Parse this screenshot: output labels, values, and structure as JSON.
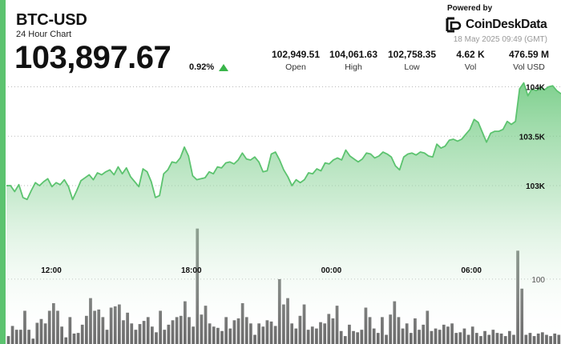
{
  "header": {
    "pair": "BTC-USD",
    "subtitle": "24 Hour Chart",
    "price": "103,897.67",
    "change": "0.92%",
    "change_direction_icon": "up-triangle-icon"
  },
  "stats": [
    {
      "value": "102,949.51",
      "label": "Open"
    },
    {
      "value": "104,061.63",
      "label": "High"
    },
    {
      "value": "102,758.35",
      "label": "Low"
    },
    {
      "value": "4.62 K",
      "label": "Vol"
    },
    {
      "value": "476.59 M",
      "label": "Vol USD"
    }
  ],
  "branding": {
    "powered_by": "Powered by",
    "name": "CoinDeskData",
    "logo_icon": "coindesk-logo-icon",
    "timestamp": "18 May 2025 09:49 (GMT)"
  },
  "colors": {
    "accent": "#5cc36f",
    "line": "#5cc36f",
    "fill_top": "#5cc36f",
    "volume_bars": "#6b6b6b",
    "up": "#39b54a"
  },
  "chart_data": {
    "type": "area",
    "x_tick_labels": [
      "12:00",
      "18:00",
      "00:00",
      "06:00"
    ],
    "y_tick_labels": [
      "104K",
      "103.5K",
      "103K"
    ],
    "y_ticks": [
      104000,
      103500,
      103000
    ],
    "ylim": [
      102450,
      104150
    ],
    "volume_tick_label": "100",
    "volume_tick_value": 100,
    "volume_max": 215,
    "price": [
      103000,
      103000,
      102940,
      103010,
      102880,
      102860,
      102950,
      103030,
      103000,
      103040,
      103070,
      102990,
      103030,
      103010,
      103060,
      102990,
      102860,
      102950,
      103050,
      103080,
      103110,
      103060,
      103130,
      103110,
      103140,
      103160,
      103110,
      103190,
      103120,
      103180,
      103090,
      103040,
      102990,
      103170,
      103140,
      103040,
      102880,
      102900,
      103120,
      103160,
      103240,
      103230,
      103280,
      103390,
      103300,
      103100,
      103060,
      103070,
      103080,
      103140,
      103120,
      103190,
      103180,
      103230,
      103240,
      103220,
      103260,
      103330,
      103270,
      103260,
      103290,
      103240,
      103140,
      103150,
      103320,
      103340,
      103260,
      103160,
      103090,
      103000,
      103060,
      103030,
      103060,
      103130,
      103120,
      103170,
      103150,
      103230,
      103220,
      103260,
      103280,
      103260,
      103360,
      103300,
      103270,
      103240,
      103270,
      103330,
      103320,
      103280,
      103300,
      103340,
      103320,
      103290,
      103200,
      103160,
      103290,
      103320,
      103330,
      103310,
      103340,
      103330,
      103300,
      103290,
      103420,
      103380,
      103400,
      103460,
      103470,
      103450,
      103470,
      103520,
      103570,
      103670,
      103640,
      103540,
      103440,
      103530,
      103550,
      103550,
      103570,
      103650,
      103620,
      103650,
      103980,
      104040,
      103910,
      103980,
      103960,
      104000,
      103970,
      104000,
      104010,
      103960,
      103930
    ],
    "volume": [
      10,
      26,
      20,
      20,
      50,
      20,
      6,
      31,
      37,
      30,
      50,
      62,
      50,
      25,
      8,
      40,
      14,
      15,
      28,
      42,
      70,
      50,
      52,
      40,
      20,
      55,
      57,
      60,
      35,
      47,
      30,
      20,
      29,
      34,
      40,
      25,
      16,
      50,
      20,
      28,
      35,
      40,
      42,
      65,
      40,
      25,
      20,
      44,
      58,
      30,
      25,
      23,
      18,
      40,
      22,
      35,
      38,
      62,
      40,
      30,
      12,
      30,
      25,
      35,
      33,
      26,
      100,
      60,
      70,
      30,
      22,
      42,
      60,
      20,
      25,
      22,
      32,
      30,
      45,
      38,
      58,
      18,
      10,
      28,
      18,
      16,
      20,
      55,
      40,
      22,
      15,
      40,
      12,
      44,
      65,
      40,
      22,
      30,
      15,
      38,
      20,
      28,
      50,
      18,
      22,
      20,
      28,
      25,
      30,
      15,
      16,
      22,
      12,
      25,
      15,
      10,
      18,
      12,
      20,
      15,
      14,
      10,
      18,
      12,
      20,
      14,
      12,
      15,
      10,
      14,
      16,
      12,
      10,
      14,
      12
    ],
    "volume_spikes": [
      [
        46,
        180
      ],
      [
        124,
        145
      ],
      [
        125,
        85
      ]
    ]
  }
}
